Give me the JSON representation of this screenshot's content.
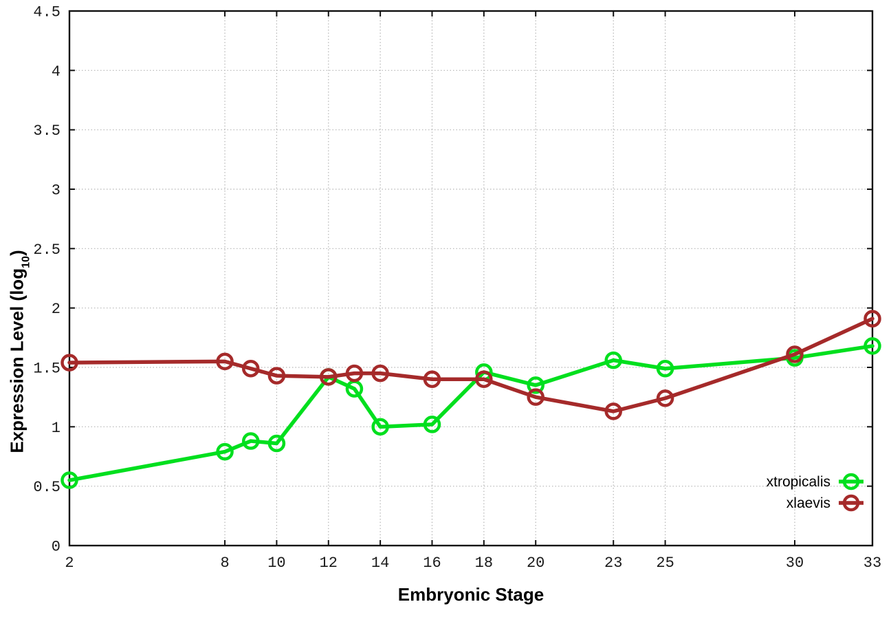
{
  "chart_data": {
    "type": "line",
    "title": "",
    "xlabel": "Embryonic Stage",
    "ylabel_pre": "Expression Level (log",
    "ylabel_sub": "10",
    "ylabel_post": ")",
    "xlim": [
      2,
      33
    ],
    "ylim": [
      0,
      4.5
    ],
    "xticks": [
      2,
      8,
      10,
      12,
      14,
      16,
      18,
      20,
      23,
      25,
      30,
      33
    ],
    "yticks": [
      0,
      0.5,
      1,
      1.5,
      2,
      2.5,
      3,
      3.5,
      4,
      4.5
    ],
    "grid": "dotted, both axes",
    "legend_position": "inside bottom-right",
    "x": [
      2,
      8,
      9,
      10,
      12,
      13,
      14,
      16,
      18,
      20,
      23,
      25,
      30,
      33
    ],
    "series": [
      {
        "name": "xtropicalis",
        "color": "#00df1e",
        "values": [
          0.55,
          0.79,
          0.88,
          0.86,
          1.42,
          1.32,
          1.0,
          1.02,
          1.46,
          1.35,
          1.56,
          1.49,
          1.58,
          1.68
        ]
      },
      {
        "name": "xlaevis",
        "color": "#a52a2a",
        "values": [
          1.54,
          1.55,
          1.49,
          1.43,
          1.42,
          1.45,
          1.45,
          1.4,
          1.4,
          1.25,
          1.13,
          1.24,
          1.61,
          1.91
        ]
      }
    ]
  }
}
